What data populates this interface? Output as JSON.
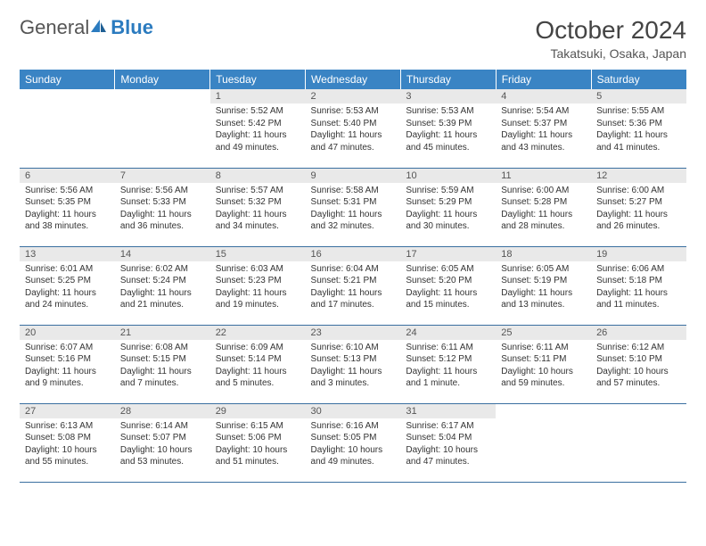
{
  "logo": {
    "text1": "General",
    "text2": "Blue"
  },
  "title": "October 2024",
  "location": "Takatsuki, Osaka, Japan",
  "colors": {
    "header_bg": "#3a84c4",
    "header_text": "#ffffff",
    "daynum_bg": "#e9e9e9",
    "border": "#3a6fa0",
    "logo_blue": "#2b7bbf"
  },
  "weekdays": [
    "Sunday",
    "Monday",
    "Tuesday",
    "Wednesday",
    "Thursday",
    "Friday",
    "Saturday"
  ],
  "lead_blanks": 2,
  "days": [
    {
      "n": 1,
      "sr": "5:52 AM",
      "ss": "5:42 PM",
      "dl": "11 hours and 49 minutes."
    },
    {
      "n": 2,
      "sr": "5:53 AM",
      "ss": "5:40 PM",
      "dl": "11 hours and 47 minutes."
    },
    {
      "n": 3,
      "sr": "5:53 AM",
      "ss": "5:39 PM",
      "dl": "11 hours and 45 minutes."
    },
    {
      "n": 4,
      "sr": "5:54 AM",
      "ss": "5:37 PM",
      "dl": "11 hours and 43 minutes."
    },
    {
      "n": 5,
      "sr": "5:55 AM",
      "ss": "5:36 PM",
      "dl": "11 hours and 41 minutes."
    },
    {
      "n": 6,
      "sr": "5:56 AM",
      "ss": "5:35 PM",
      "dl": "11 hours and 38 minutes."
    },
    {
      "n": 7,
      "sr": "5:56 AM",
      "ss": "5:33 PM",
      "dl": "11 hours and 36 minutes."
    },
    {
      "n": 8,
      "sr": "5:57 AM",
      "ss": "5:32 PM",
      "dl": "11 hours and 34 minutes."
    },
    {
      "n": 9,
      "sr": "5:58 AM",
      "ss": "5:31 PM",
      "dl": "11 hours and 32 minutes."
    },
    {
      "n": 10,
      "sr": "5:59 AM",
      "ss": "5:29 PM",
      "dl": "11 hours and 30 minutes."
    },
    {
      "n": 11,
      "sr": "6:00 AM",
      "ss": "5:28 PM",
      "dl": "11 hours and 28 minutes."
    },
    {
      "n": 12,
      "sr": "6:00 AM",
      "ss": "5:27 PM",
      "dl": "11 hours and 26 minutes."
    },
    {
      "n": 13,
      "sr": "6:01 AM",
      "ss": "5:25 PM",
      "dl": "11 hours and 24 minutes."
    },
    {
      "n": 14,
      "sr": "6:02 AM",
      "ss": "5:24 PM",
      "dl": "11 hours and 21 minutes."
    },
    {
      "n": 15,
      "sr": "6:03 AM",
      "ss": "5:23 PM",
      "dl": "11 hours and 19 minutes."
    },
    {
      "n": 16,
      "sr": "6:04 AM",
      "ss": "5:21 PM",
      "dl": "11 hours and 17 minutes."
    },
    {
      "n": 17,
      "sr": "6:05 AM",
      "ss": "5:20 PM",
      "dl": "11 hours and 15 minutes."
    },
    {
      "n": 18,
      "sr": "6:05 AM",
      "ss": "5:19 PM",
      "dl": "11 hours and 13 minutes."
    },
    {
      "n": 19,
      "sr": "6:06 AM",
      "ss": "5:18 PM",
      "dl": "11 hours and 11 minutes."
    },
    {
      "n": 20,
      "sr": "6:07 AM",
      "ss": "5:16 PM",
      "dl": "11 hours and 9 minutes."
    },
    {
      "n": 21,
      "sr": "6:08 AM",
      "ss": "5:15 PM",
      "dl": "11 hours and 7 minutes."
    },
    {
      "n": 22,
      "sr": "6:09 AM",
      "ss": "5:14 PM",
      "dl": "11 hours and 5 minutes."
    },
    {
      "n": 23,
      "sr": "6:10 AM",
      "ss": "5:13 PM",
      "dl": "11 hours and 3 minutes."
    },
    {
      "n": 24,
      "sr": "6:11 AM",
      "ss": "5:12 PM",
      "dl": "11 hours and 1 minute."
    },
    {
      "n": 25,
      "sr": "6:11 AM",
      "ss": "5:11 PM",
      "dl": "10 hours and 59 minutes."
    },
    {
      "n": 26,
      "sr": "6:12 AM",
      "ss": "5:10 PM",
      "dl": "10 hours and 57 minutes."
    },
    {
      "n": 27,
      "sr": "6:13 AM",
      "ss": "5:08 PM",
      "dl": "10 hours and 55 minutes."
    },
    {
      "n": 28,
      "sr": "6:14 AM",
      "ss": "5:07 PM",
      "dl": "10 hours and 53 minutes."
    },
    {
      "n": 29,
      "sr": "6:15 AM",
      "ss": "5:06 PM",
      "dl": "10 hours and 51 minutes."
    },
    {
      "n": 30,
      "sr": "6:16 AM",
      "ss": "5:05 PM",
      "dl": "10 hours and 49 minutes."
    },
    {
      "n": 31,
      "sr": "6:17 AM",
      "ss": "5:04 PM",
      "dl": "10 hours and 47 minutes."
    }
  ],
  "labels": {
    "sunrise": "Sunrise:",
    "sunset": "Sunset:",
    "daylight": "Daylight:"
  }
}
